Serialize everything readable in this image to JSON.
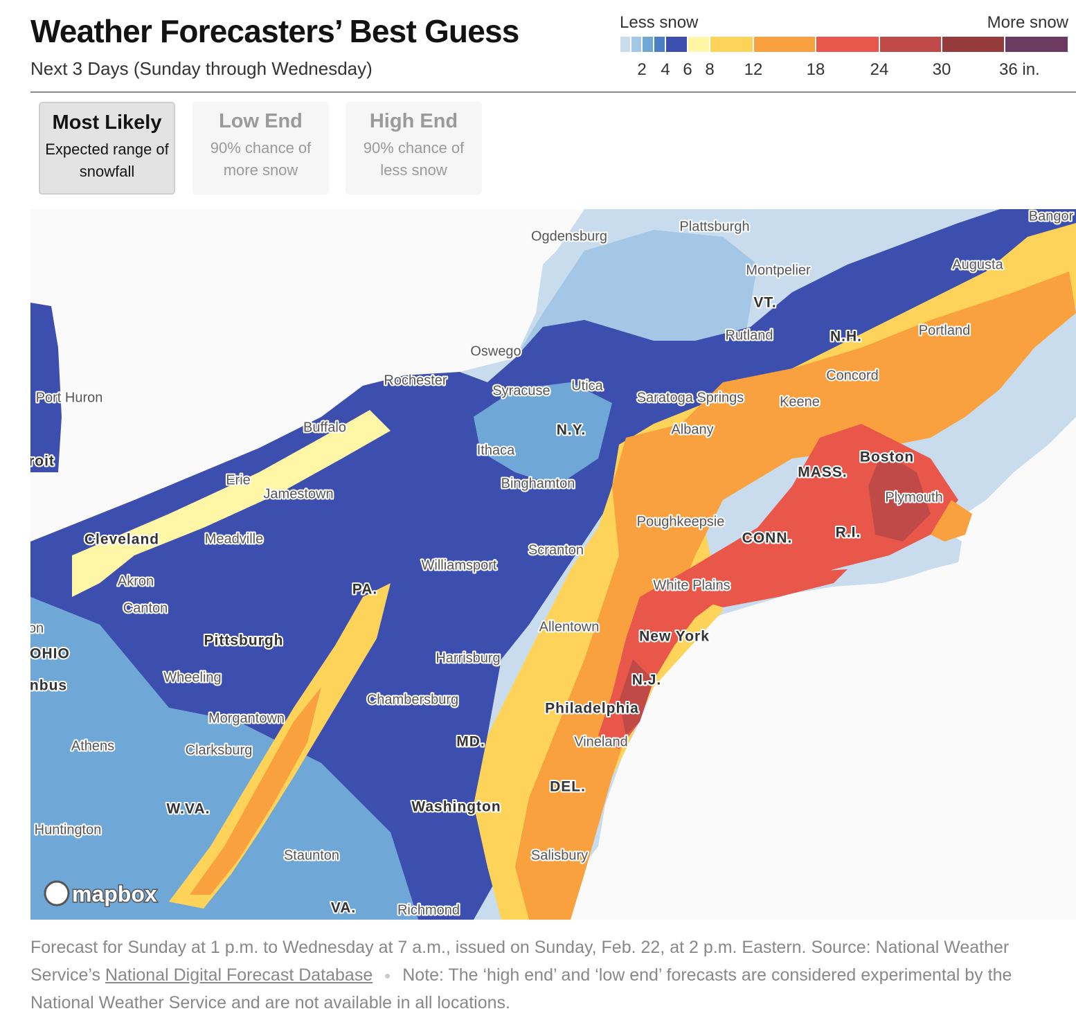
{
  "header": {
    "title": "Weather Forecasters’ Best Guess",
    "subtitle": "Next 3 Days (Sunday through Wednesday)"
  },
  "legend": {
    "less": "Less snow",
    "more": "More snow",
    "ticks": [
      "2",
      "4",
      "6",
      "8",
      "12",
      "18",
      "24",
      "30",
      "36 in."
    ],
    "colors": [
      "#c8dcee",
      "#a5c7e6",
      "#6fa7d6",
      "#4a7fc1",
      "#3d4fae",
      "#fff7a6",
      "#fdd35a",
      "#f9a13e",
      "#e8574a",
      "#c04a48",
      "#963b3d",
      "#6b3b63"
    ]
  },
  "tabs": [
    {
      "title": "Most Likely",
      "description": "Expected range of snowfall",
      "active": true
    },
    {
      "title": "Low End",
      "description": "90% chance of more snow",
      "active": false
    },
    {
      "title": "High End",
      "description": "90% chance of less snow",
      "active": false
    }
  ],
  "map": {
    "labels": [
      "Ogdensburg",
      "Plattsburgh",
      "Bangor",
      "Montpelier",
      "Augusta",
      "VT.",
      "Rutland",
      "N.H.",
      "Portland",
      "Oswego",
      "Concord",
      "Rochester",
      "Syracuse",
      "Utica",
      "Saratoga Springs",
      "Keene",
      "Port Huron",
      "Buffalo",
      "N.Y.",
      "Albany",
      "Ithaca",
      "Boston",
      "roit",
      "Erie",
      "MASS.",
      "Binghamton",
      "Jamestown",
      "Plymouth",
      "Poughkeepsie",
      "Cleveland",
      "Meadville",
      "CONN.",
      "R.I.",
      "Scranton",
      "Williamsport",
      "Akron",
      "White Plains",
      "PA.",
      "Canton",
      "Allentown",
      "on",
      "Pittsburgh",
      "New York",
      "OHIO",
      "Harrisburg",
      "Wheeling",
      "N.J.",
      "nbus",
      "Chambersburg",
      "Philadelphia",
      "Morgantown",
      "MD.",
      "Vineland",
      "Athens",
      "Clarksburg",
      "DEL.",
      "W.VA.",
      "Washington",
      "Huntington",
      "Staunton",
      "Salisbury",
      "VA.",
      "Richmond"
    ],
    "logo": "mapbox"
  },
  "footer": {
    "source": "Forecast for Sunday at 1 p.m. to Wednesday at 7 a.m., issued on Sunday, Feb. 22, at 2 p.m. Eastern. Source: National Weather Service’s",
    "link": "National Digital Forecast Database",
    "note": "Note: The ‘high end’ and ‘low end’ forecasts are considered experimental by the National Weather Service and are not available in all locations."
  }
}
